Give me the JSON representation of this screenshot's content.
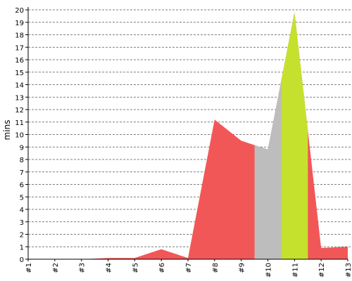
{
  "chart_data": {
    "type": "area",
    "ylabel": "mins",
    "xlabel": "",
    "ylim": [
      0,
      20
    ],
    "yticks": [
      "0",
      "1",
      "2",
      "3",
      "4",
      "5",
      "6",
      "7",
      "8",
      "9",
      "10",
      "11",
      "12",
      "13",
      "14",
      "15",
      "16",
      "17",
      "18",
      "19",
      "20"
    ],
    "categories": [
      "#1",
      "#2",
      "#3",
      "#4",
      "#5",
      "#6",
      "#7",
      "#8",
      "#9",
      "#10",
      "#11",
      "#12",
      "#13"
    ],
    "values": [
      0.0,
      0.0,
      0.0,
      0.1,
      0.1,
      0.8,
      0.1,
      11.2,
      9.5,
      8.8,
      19.8,
      0.9,
      1.0
    ],
    "grid": true,
    "colors": {
      "base": "#f25757",
      "highlight_gray": "#bdbdbd",
      "highlight_green": "#c5e12d",
      "grid": "#555555",
      "axis": "#000000"
    },
    "highlights": [
      {
        "from": 8.5,
        "to": 9.5,
        "color": "#bdbdbd"
      },
      {
        "from": 9.5,
        "to": 10.5,
        "color": "#c5e12d"
      }
    ]
  }
}
